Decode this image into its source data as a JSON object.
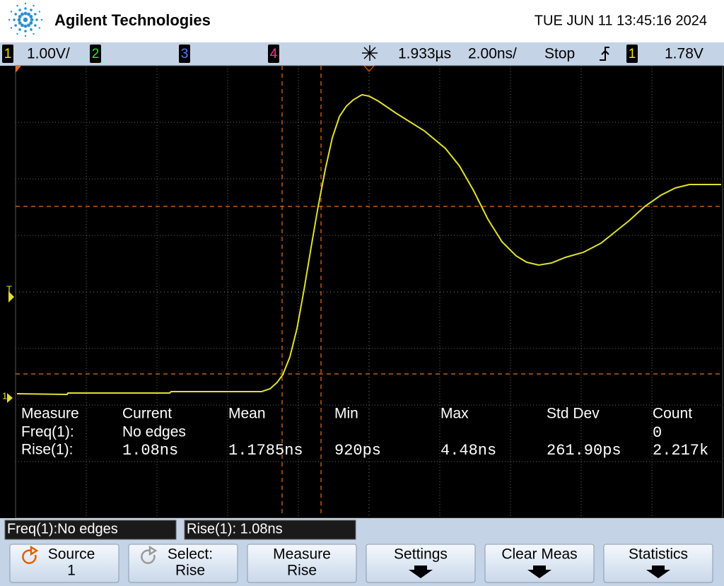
{
  "header": {
    "brand": "Agilent Technologies",
    "datetime": "TUE JUN 11 13:45:16 2024"
  },
  "status_bar": {
    "ch1_label": "1",
    "ch1_scale": "1.00V/",
    "ch2_label": "2",
    "ch3_label": "3",
    "ch4_label": "4",
    "time_delay": "1.933µs",
    "time_scale": "2.00ns/",
    "run_state": "Stop",
    "trigger_source": "1",
    "trigger_level": "1.78V"
  },
  "display": {
    "trigger_marker": "T",
    "ground_marker": "1"
  },
  "measurements": {
    "columns": [
      "Measure",
      "Current",
      "Mean",
      "Min",
      "Max",
      "Std Dev",
      "Count"
    ],
    "rows": [
      {
        "label": "Freq(1):",
        "current": "No edges",
        "count": "0"
      },
      {
        "label": "Rise(1):",
        "current": "1.08ns",
        "mean": "1.1785ns",
        "min": "920ps",
        "max": "4.48ns",
        "std_dev": "261.90ps",
        "count": "2.217k"
      }
    ]
  },
  "readouts": [
    "Freq(1):No edges",
    "Rise(1): 1.08ns"
  ],
  "softkeys": [
    {
      "line1": "Source",
      "line2": "1"
    },
    {
      "line1": "Select:",
      "line2": "Rise"
    },
    {
      "line1": "Measure",
      "line2": "Rise"
    },
    {
      "line1": "Settings"
    },
    {
      "line1": "Clear Meas"
    },
    {
      "line1": "Statistics"
    }
  ]
}
